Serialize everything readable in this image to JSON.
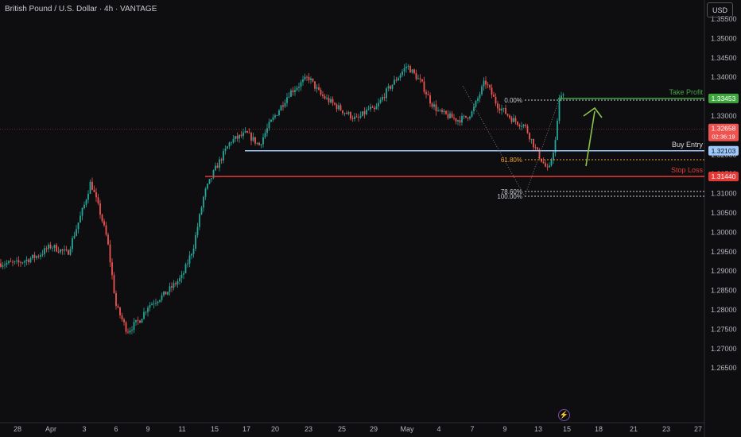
{
  "header": {
    "title": "British Pound / U.S. Dollar · 4h · VANTAGE",
    "currency_button": "USD"
  },
  "chart_data": {
    "type": "candlestick",
    "title": "British Pound / U.S. Dollar · 4h · VANTAGE",
    "xlabel": "",
    "ylabel": "",
    "ylim": [
      1.2625,
      1.3575
    ],
    "y_ticks": [
      "1.35500",
      "1.35000",
      "1.34500",
      "1.34000",
      "1.33500",
      "1.33000",
      "1.32500",
      "1.32000",
      "1.31500",
      "1.31000",
      "1.30500",
      "1.30000",
      "1.29500",
      "1.29000",
      "1.28500",
      "1.28000",
      "1.27500",
      "1.27000",
      "1.26500"
    ],
    "x_ticks": [
      "28",
      "Apr",
      "3",
      "6",
      "9",
      "11",
      "15",
      "17",
      "20",
      "23",
      "25",
      "29",
      "May",
      "4",
      "7",
      "9",
      "13",
      "15",
      "18",
      "21",
      "23",
      "27"
    ],
    "anchors": [
      [
        "28",
        1.292
      ],
      [
        "31",
        1.294
      ],
      [
        "Apr",
        1.2965
      ],
      [
        "2",
        1.2945
      ],
      [
        "3",
        1.307
      ],
      [
        "3.5",
        1.313
      ],
      [
        "4",
        1.305
      ],
      [
        "5",
        1.298
      ],
      [
        "6",
        1.281
      ],
      [
        "7",
        1.2745
      ],
      [
        "8",
        1.2775
      ],
      [
        "9",
        1.281
      ],
      [
        "10",
        1.284
      ],
      [
        "11",
        1.2885
      ],
      [
        "12",
        1.296
      ],
      [
        "13",
        1.31
      ],
      [
        "14",
        1.316
      ],
      [
        "15",
        1.3235
      ],
      [
        "16",
        1.3255
      ],
      [
        "17",
        1.3225
      ],
      [
        "18",
        1.3275
      ],
      [
        "19",
        1.332
      ],
      [
        "20",
        1.336
      ],
      [
        "21",
        1.34
      ],
      [
        "22",
        1.3355
      ],
      [
        "23",
        1.3315
      ],
      [
        "24",
        1.329
      ],
      [
        "25",
        1.332
      ],
      [
        "26",
        1.331
      ],
      [
        "28",
        1.336
      ],
      [
        "29",
        1.343
      ],
      [
        "30",
        1.3385
      ],
      [
        "May",
        1.3335
      ],
      [
        "2",
        1.331
      ],
      [
        "3",
        1.329
      ],
      [
        "4",
        1.3295
      ],
      [
        "6",
        1.331
      ],
      [
        "7",
        1.339
      ],
      [
        "8",
        1.333
      ],
      [
        "9",
        1.329
      ],
      [
        "10",
        1.3275
      ],
      [
        "11",
        1.3205
      ],
      [
        "12",
        1.3155
      ],
      [
        "13",
        1.325
      ],
      [
        "14",
        1.3345
      ],
      [
        "14.5",
        1.3355
      ],
      [
        "15",
        1.3265
      ]
    ],
    "last_price": "1.32658",
    "countdown": "02:36:19",
    "levels": [
      {
        "name": "Take Profit",
        "value": "1.33453",
        "color": "#3fa53f"
      },
      {
        "name": "Buy Entry",
        "value": "1.32103",
        "color": "#9ec9ff"
      },
      {
        "name": "Stop Loss",
        "value": "1.31440",
        "color": "#e53935"
      }
    ],
    "fibonacci": {
      "levels": [
        "0.00%",
        "61.80%",
        "78.60%",
        "100.00%"
      ]
    },
    "colors": {
      "up": "#26a69a",
      "down": "#ef5350",
      "background": "#0e0e10",
      "take_profit": "#3fa53f",
      "arrow": "#8bc34a",
      "fib": "#c9ccd3",
      "fib_618": "#f0a030"
    }
  }
}
